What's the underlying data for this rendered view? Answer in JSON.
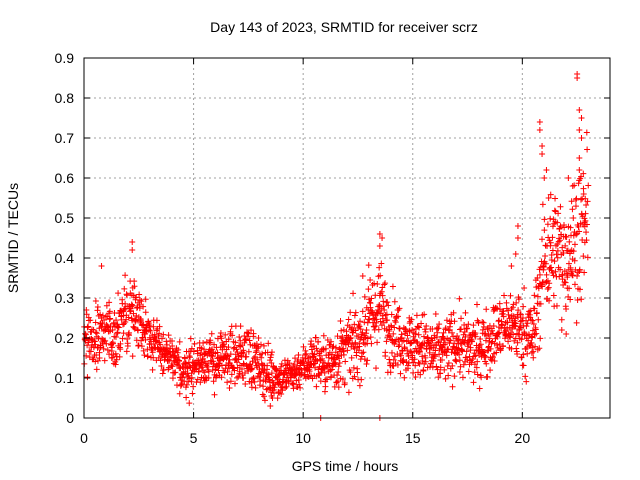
{
  "chart_data": {
    "type": "scatter",
    "title": "Day 143 of 2023, SRMTID for receiver scrz",
    "xlabel": "GPS time / hours",
    "ylabel": "SRMTID / TECUs",
    "xlim": [
      0,
      24
    ],
    "ylim": [
      0,
      0.9
    ],
    "xticks": [
      0,
      5,
      10,
      15,
      20
    ],
    "xtick_labels": [
      "0",
      "5",
      "10",
      "15",
      "20"
    ],
    "yticks": [
      0,
      0.1,
      0.2,
      0.3,
      0.4,
      0.5,
      0.6,
      0.7,
      0.8,
      0.9
    ],
    "ytick_labels": [
      "0",
      "0.1",
      "0.2",
      "0.3",
      "0.4",
      "0.5",
      "0.6",
      "0.7",
      "0.8",
      "0.9"
    ],
    "grid": true,
    "marker": "plus",
    "color": "#ff0000",
    "series": [
      {
        "name": "SRMTID",
        "trend_x": [
          0,
          0.5,
          1,
          1.5,
          2,
          2.5,
          3,
          3.5,
          4,
          4.5,
          5,
          5.5,
          6,
          6.5,
          7,
          7.5,
          8,
          8.5,
          9,
          9.5,
          10,
          10.5,
          11,
          11.5,
          12,
          12.5,
          13,
          13.5,
          14,
          14.5,
          15,
          15.5,
          16,
          16.5,
          17,
          17.5,
          18,
          18.5,
          19,
          19.5,
          20,
          20.5,
          21,
          21.5,
          22,
          22.5,
          23
        ],
        "trend_y": [
          0.19,
          0.2,
          0.22,
          0.21,
          0.27,
          0.26,
          0.2,
          0.17,
          0.14,
          0.12,
          0.13,
          0.15,
          0.14,
          0.15,
          0.15,
          0.16,
          0.13,
          0.11,
          0.1,
          0.11,
          0.13,
          0.15,
          0.13,
          0.15,
          0.17,
          0.19,
          0.24,
          0.28,
          0.22,
          0.2,
          0.18,
          0.18,
          0.16,
          0.17,
          0.19,
          0.17,
          0.17,
          0.2,
          0.22,
          0.24,
          0.22,
          0.2,
          0.4,
          0.42,
          0.4,
          0.45,
          0.5
        ],
        "spread": [
          0.05,
          0.05,
          0.06,
          0.05,
          0.06,
          0.05,
          0.04,
          0.04,
          0.04,
          0.04,
          0.04,
          0.04,
          0.04,
          0.04,
          0.04,
          0.05,
          0.04,
          0.04,
          0.03,
          0.03,
          0.03,
          0.04,
          0.04,
          0.05,
          0.05,
          0.06,
          0.07,
          0.07,
          0.06,
          0.05,
          0.05,
          0.05,
          0.05,
          0.05,
          0.05,
          0.05,
          0.05,
          0.05,
          0.05,
          0.05,
          0.06,
          0.06,
          0.09,
          0.09,
          0.09,
          0.1,
          0.1
        ],
        "density_per_hour": 85,
        "highlights": [
          {
            "x": 2.2,
            "y": 0.44
          },
          {
            "x": 2.2,
            "y": 0.42
          },
          {
            "x": 0.8,
            "y": 0.38
          },
          {
            "x": 13.5,
            "y": 0.46
          },
          {
            "x": 13.6,
            "y": 0.45
          },
          {
            "x": 13.5,
            "y": 0.43
          },
          {
            "x": 20.8,
            "y": 0.74
          },
          {
            "x": 20.8,
            "y": 0.72
          },
          {
            "x": 20.9,
            "y": 0.68
          },
          {
            "x": 20.9,
            "y": 0.66
          },
          {
            "x": 21.0,
            "y": 0.6
          },
          {
            "x": 21.1,
            "y": 0.62
          },
          {
            "x": 21.2,
            "y": 0.55
          },
          {
            "x": 22.5,
            "y": 0.86
          },
          {
            "x": 22.5,
            "y": 0.85
          },
          {
            "x": 22.6,
            "y": 0.77
          },
          {
            "x": 22.7,
            "y": 0.75
          },
          {
            "x": 22.6,
            "y": 0.72
          },
          {
            "x": 22.7,
            "y": 0.7
          },
          {
            "x": 22.6,
            "y": 0.65
          },
          {
            "x": 22.6,
            "y": 0.62
          },
          {
            "x": 22.1,
            "y": 0.6
          },
          {
            "x": 22.3,
            "y": 0.58
          },
          {
            "x": 22.8,
            "y": 0.56
          },
          {
            "x": 19.8,
            "y": 0.48
          },
          {
            "x": 19.8,
            "y": 0.45
          },
          {
            "x": 19.7,
            "y": 0.41
          },
          {
            "x": 19.5,
            "y": 0.38
          },
          {
            "x": 21.8,
            "y": 0.22
          },
          {
            "x": 22.0,
            "y": 0.21
          },
          {
            "x": 8.5,
            "y": 0.03
          },
          {
            "x": 8.6,
            "y": 0.05
          },
          {
            "x": 10.8,
            "y": 0.0
          },
          {
            "x": 13.5,
            "y": 0.0
          }
        ]
      }
    ]
  }
}
